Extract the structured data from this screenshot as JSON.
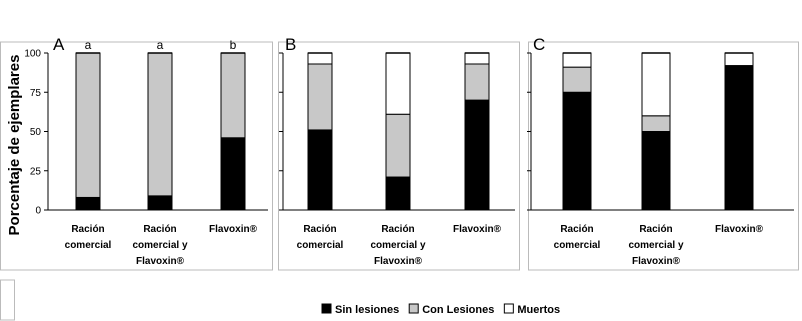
{
  "chart_data": [
    {
      "type": "bar",
      "stacked": true,
      "panel_label": "A",
      "categories": [
        "Ración comercial",
        "Ración comercial y Flavoxin®",
        "Flavoxin®"
      ],
      "significance_letters": [
        "a",
        "a",
        "b"
      ],
      "series": [
        {
          "name": "Sin lesiones",
          "values": [
            8,
            9,
            46
          ]
        },
        {
          "name": "Con Lesiones",
          "values": [
            92,
            91,
            54
          ]
        },
        {
          "name": "Muertos",
          "values": [
            0,
            0,
            0
          ]
        }
      ],
      "ylim": [
        0,
        100
      ],
      "yticks": [
        0,
        25,
        50,
        75,
        100
      ],
      "ylabel": "Porcentaje de ejemplares"
    },
    {
      "type": "bar",
      "stacked": true,
      "panel_label": "B",
      "categories": [
        "Ración comercial",
        "Ración comercial y Flavoxin®",
        "Flavoxin®"
      ],
      "series": [
        {
          "name": "Sin lesiones",
          "values": [
            51,
            21,
            70
          ]
        },
        {
          "name": "Con Lesiones",
          "values": [
            42,
            40,
            23
          ]
        },
        {
          "name": "Muertos",
          "values": [
            7,
            39,
            7
          ]
        }
      ],
      "ylim": [
        0,
        100
      ]
    },
    {
      "type": "bar",
      "stacked": true,
      "panel_label": "C",
      "categories": [
        "Ración comercial",
        "Ración comercial y Flavoxin®",
        "Flavoxin®"
      ],
      "series": [
        {
          "name": "Sin lesiones",
          "values": [
            75,
            50,
            92
          ]
        },
        {
          "name": "Con Lesiones",
          "values": [
            16,
            10,
            0
          ]
        },
        {
          "name": "Muertos",
          "values": [
            9,
            40,
            8
          ]
        }
      ],
      "ylim": [
        0,
        100
      ]
    }
  ],
  "legend": {
    "position": "bottom",
    "items": [
      {
        "label": "Sin lesiones",
        "color": "#000000"
      },
      {
        "label": "Con Lesiones",
        "color": "#c8c8c8"
      },
      {
        "label": "Muertos",
        "color": "#ffffff"
      }
    ]
  },
  "colors": {
    "series": [
      "#000000",
      "#c8c8c8",
      "#ffffff"
    ],
    "border": "#000000",
    "panel_border": "#bbbbbb"
  }
}
